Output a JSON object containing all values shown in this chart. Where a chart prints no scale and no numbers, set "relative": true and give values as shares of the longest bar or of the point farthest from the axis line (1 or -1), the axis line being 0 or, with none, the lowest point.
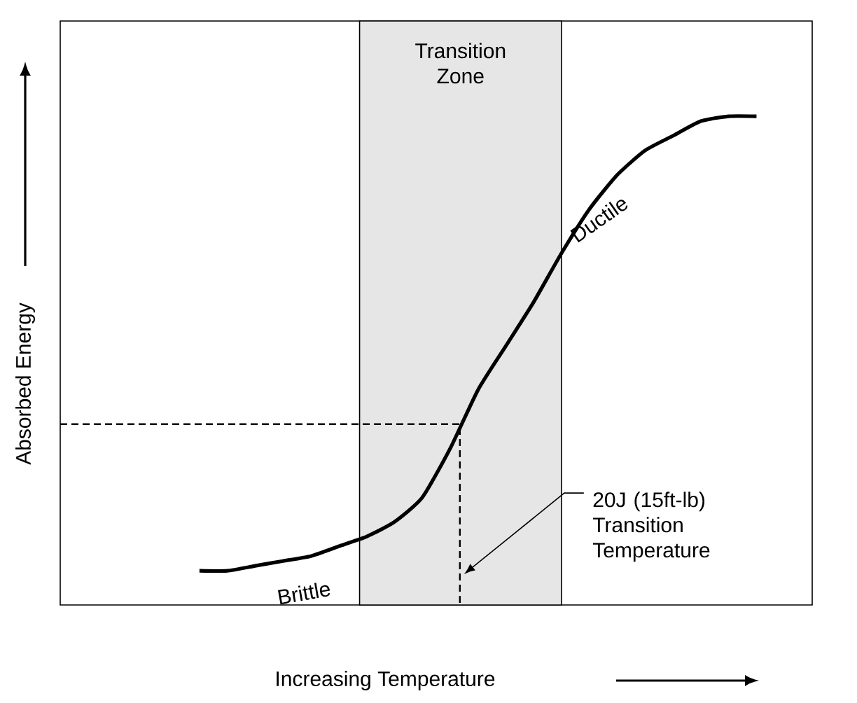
{
  "chart_data": {
    "type": "line",
    "relative": true,
    "xlabel": "Increasing Temperature",
    "ylabel": "Absorbed Energy",
    "categories": [
      null,
      null,
      null,
      null,
      null,
      null,
      null,
      null,
      null,
      null,
      null,
      null,
      null,
      null,
      null,
      null,
      null,
      null,
      null,
      null,
      null,
      null,
      null,
      null,
      null,
      null,
      null,
      null
    ],
    "values": [
      null,
      null,
      null,
      null,
      null,
      0.07,
      0.07,
      0.08,
      0.09,
      0.1,
      0.12,
      0.14,
      0.17,
      0.22,
      0.32,
      0.44,
      0.53,
      0.62,
      0.72,
      0.81,
      0.88,
      0.93,
      0.96,
      0.99,
      1.0,
      1.0,
      null,
      null
    ],
    "color": "#000000",
    "ref_lines": [
      {
        "axis": "y",
        "value": 0.37,
        "line_style": "dashed"
      }
    ],
    "annotations": [
      "Transition Zone",
      "Brittle",
      "Ductile",
      "20J (15ft-lb) Transition Temperature"
    ]
  }
}
